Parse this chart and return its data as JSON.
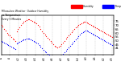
{
  "background_color": "#ffffff",
  "grid_color": "#c8c8c8",
  "red_color": "#ff0000",
  "blue_color": "#0000ff",
  "legend_humidity": "Humidity",
  "legend_temp": "Temp",
  "title": "Milwaukee Weather  Outdoor Humidity\nvs Temperature\nEvery 5 Minutes",
  "figsize": [
    1.6,
    0.87
  ],
  "dpi": 100,
  "ylim": [
    33,
    82
  ],
  "xlim": [
    0,
    80
  ],
  "yticks": [
    75,
    70,
    65,
    60,
    55,
    50,
    45,
    41
  ],
  "humidity_y": [
    70,
    68,
    65,
    63,
    60,
    58,
    57,
    55,
    53,
    52,
    50,
    62,
    65,
    67,
    70,
    72,
    74,
    75,
    76,
    77,
    77,
    76,
    75,
    74,
    73,
    72,
    70,
    68,
    65,
    62,
    60,
    58,
    56,
    54,
    52,
    50,
    48,
    46,
    44,
    43,
    42,
    43,
    44,
    46,
    48,
    50,
    53,
    55,
    57,
    59,
    61,
    63,
    65,
    67,
    68,
    70,
    71,
    72,
    73,
    74,
    74,
    73,
    72,
    71,
    70,
    69,
    68,
    67,
    66,
    65,
    64,
    63,
    62,
    61,
    60,
    59,
    58,
    57,
    56,
    55
  ],
  "temp_y": [
    50,
    49,
    48,
    47,
    46,
    45,
    44,
    43,
    42,
    41,
    40,
    47,
    48,
    49,
    50,
    51,
    52,
    52,
    53,
    53,
    53,
    52,
    51,
    50,
    49,
    48,
    47,
    45,
    43,
    41,
    39,
    37,
    36,
    34,
    33,
    32,
    31,
    30,
    29,
    29,
    29,
    30,
    31,
    32,
    34,
    36,
    38,
    40,
    42,
    44,
    46,
    48,
    50,
    52,
    54,
    56,
    58,
    60,
    61,
    62,
    63,
    63,
    62,
    61,
    60,
    59,
    58,
    57,
    56,
    55,
    54,
    53,
    52,
    51,
    50,
    49,
    48,
    47,
    46,
    45
  ]
}
